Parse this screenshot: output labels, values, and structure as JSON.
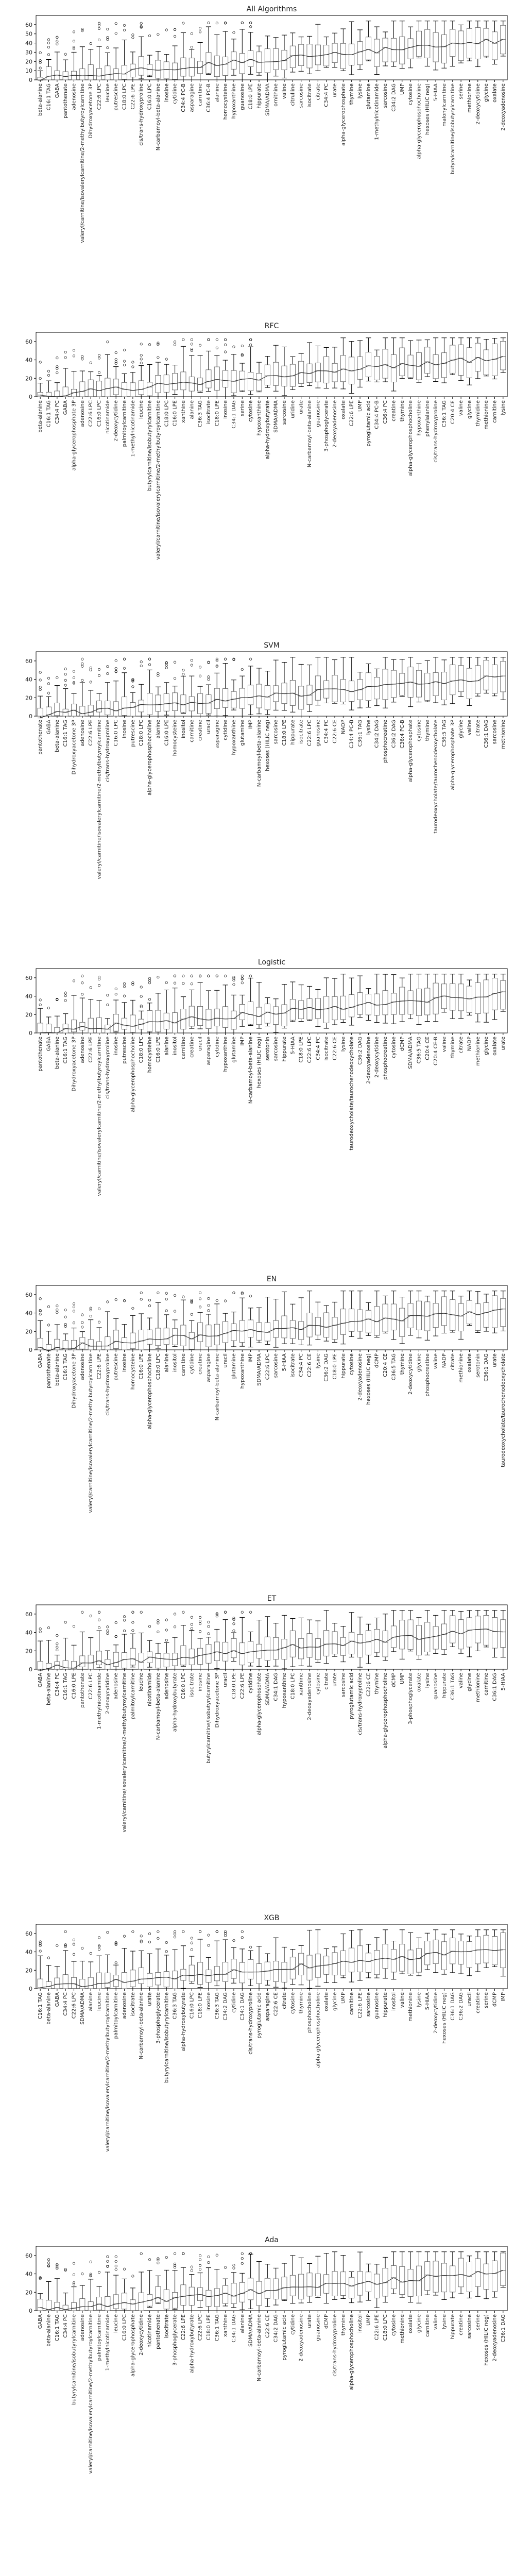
{
  "chart_data": [
    {
      "type": "boxplot",
      "title": "All Algorithms",
      "xlabel": "",
      "ylabel": "",
      "ylim": [
        0,
        70
      ],
      "yticks": [
        0,
        10,
        20,
        30,
        40,
        50,
        60
      ],
      "grid": false,
      "categories": [
        "beta-alanine",
        "C16:1 TAG",
        "GABA",
        "pantothenate",
        "adenosine",
        "valeryl/carnitine/isovalerylcarnitine/2-methylbutyroylcarnitine",
        "Dihydroxyacetone 3P",
        "C22:6 LPC",
        "leucine",
        "putrescine",
        "C18:0 LPC",
        "C22:6 LPE",
        "cis/trans-hydroxyproline",
        "C16:0 LPC",
        "N-carbamoyl-beta-alanine",
        "inosine",
        "cytidine",
        "C34:4 PC-B",
        "asparagine",
        "carnitine",
        "C36:4 PC-B",
        "alanine",
        "homocysteine",
        "hypoxanthine",
        "guanosine",
        "C18:0 LPE",
        "hippurate",
        "SDMA/ADMA",
        "ornithine",
        "valine",
        "citrulline",
        "sarcosine",
        "isocitrate",
        "citrate",
        "C34:4 PC",
        "urate",
        "alpha-glycerophosphate",
        "thymine",
        "lysine",
        "glutamine",
        "1-methylnicotinamide",
        "sarcosine",
        "C34:2 DAG",
        "UMP",
        "cytosine",
        "alpha-glycerophosphocholine",
        "hexoses (HILIC neg)",
        "5-HIAA",
        "malonylcarnitine",
        "butyrylcarnitine/isobutyrylcarnitine",
        "serine",
        "methionine",
        "2-deoxycytidine",
        "glycine",
        "oxalate",
        "2-deoxyadenosine"
      ]
    },
    {
      "type": "boxplot",
      "title": "RFC",
      "xlabel": "",
      "ylabel": "",
      "ylim": [
        0,
        70
      ],
      "yticks": [
        0,
        20,
        40,
        60
      ],
      "grid": false,
      "categories": [
        "beta-alanine",
        "C16:1 TAG",
        "C34:4 PC",
        "GABA",
        "alpha-glycerophosphate 3P",
        "adenosine",
        "C22:6 LPC",
        "C16:0 LPC",
        "nicotinamide",
        "2-deoxycytidine",
        "palmitoylcarnitine",
        "1-methylnicotinamide",
        "leucine",
        "butyrylcarnitine/isobutyrylcarnitine",
        "valeryl/carnitine/isovalerylcarnitine/2-methylbutyroylcarnitine",
        "C18:0 LPC",
        "C16:0 LPE",
        "xanthine",
        "alanine",
        "C36:3 TAG",
        "isocitrate",
        "C18:0 LPE",
        "inosine",
        "C34:1 DAG",
        "serine",
        "cytosine",
        "hypoxanthine",
        "alpha-hydroxybutyrate",
        "SDMA/ADMA",
        "sarcosine",
        "uridine",
        "urate",
        "N-carbamoyl-beta-alanine",
        "guanosine",
        "3-phosphoglycerate",
        "2-deoxyadenosine",
        "oxalate",
        "C22:6 LPE",
        "UMP",
        "pyroglutamic acid",
        "C34:4 PC-B",
        "C36:4 PC",
        "creatine",
        "thymine",
        "alpha-glycerophosphocholine",
        "hypoxanthine",
        "phenylalanine",
        "cis/trans-hydroxyproline",
        "C36:1 TAG",
        "C20:4 CE",
        "valine",
        "glycine",
        "thymidine",
        "methionine",
        "carnitine",
        "lysine"
      ]
    },
    {
      "type": "boxplot",
      "title": "SVM",
      "xlabel": "",
      "ylabel": "",
      "ylim": [
        0,
        70
      ],
      "yticks": [
        0,
        20,
        40,
        60
      ],
      "grid": false,
      "categories": [
        "pantothenate",
        "GABA",
        "beta-alanine",
        "C16:1 TAG",
        "Dihydroxyacetone 3P",
        "adenosine",
        "C22:6 LPE",
        "valeryl/carnitine/isovalerylcarnitine/2-methylbutyroylcarnitine",
        "cis/trans-hydroxyproline",
        "C16:0 LPC",
        "inosine",
        "putrescine",
        "C18:0 LPC",
        "alpha-glycerophosphocholine",
        "alanine",
        "C16:0 LPE",
        "homocysteine",
        "inositol",
        "carnitine",
        "creatine",
        "uracil",
        "asparagine",
        "cytidine",
        "hypoxanthine",
        "glutamine",
        "IMP",
        "N-carbamoyl-beta-alanine",
        "hexoses (HILIC neg)",
        "sarcosine",
        "C18:0 LPE",
        "hippurate",
        "isocitrate",
        "C22:6 LPC",
        "guanosine",
        "C34:4 PC",
        "C22:6 CE",
        "NADP",
        "C34:4 PC-B",
        "C36:1 TAG",
        "lysine",
        "C34:2 DAG",
        "phosphocreatine",
        "C36:2 DAG",
        "C36:4 PC-B",
        "alpha-glycerophosphate",
        "cytosine",
        "thymine",
        "taurodeoxycholate/taurochenodeoxycholate",
        "C36:5 TAG",
        "alpha-glycerophosphate 3P",
        "glycine",
        "valine",
        "citrate",
        "C36:1 DAG",
        "sarcosine",
        "methionine"
      ]
    },
    {
      "type": "boxplot",
      "title": "Logistic",
      "xlabel": "",
      "ylabel": "",
      "ylim": [
        0,
        70
      ],
      "yticks": [
        0,
        20,
        40,
        60
      ],
      "grid": false,
      "categories": [
        "pantothenate",
        "GABA",
        "beta-alanine",
        "C16:1 TAG",
        "Dihydroxyacetone 3P",
        "adenosine",
        "C22:6 LPE",
        "valeryl/carnitine/isovalerylcarnitine/2-methylbutyroylcarnitine",
        "cis/trans-hydroxyproline",
        "inosine",
        "putrescine",
        "alpha-glycerophosphocholine",
        "C18:0 LPC",
        "homocysteine",
        "C16:0 LPE",
        "alanine",
        "inositol",
        "carnitine",
        "creatine",
        "uracil",
        "asparagine",
        "cytidine",
        "hypoxanthine",
        "glutamine",
        "IMP",
        "N-carbamoyl-beta-alanine",
        "hexoses (HILIC neg)",
        "serotonin",
        "sarcosine",
        "hippurate",
        "5-HIAA",
        "C18:0 LPE",
        "C22:6 LPC",
        "C34:4 PC",
        "isocitrate",
        "C22:6 CE",
        "lysine",
        "taurodeoxycholate/taurochenodeoxycholate",
        "C36:2 DAG",
        "2-deoxyadenosine",
        "2-deoxycytidine",
        "phosphocreatine",
        "cytosine",
        "dCMP",
        "SDMA/ADMA",
        "C36:5 TAG",
        "C20:4 CE",
        "C20:4 CE-B",
        "valine",
        "thymine",
        "citrate",
        "NADP",
        "methionine",
        "glycine",
        "oxalate",
        "urate"
      ]
    },
    {
      "type": "boxplot",
      "title": "EN",
      "xlabel": "",
      "ylabel": "",
      "ylim": [
        0,
        70
      ],
      "yticks": [
        0,
        20,
        40,
        60
      ],
      "grid": false,
      "categories": [
        "GABA",
        "pantothenate",
        "beta-alanine",
        "C16:1 TAG",
        "Dihydroxyacetone 3P",
        "adenosine",
        "valeryl/carnitine/isovalerylcarnitine/2-methylbutyroylcarnitine",
        "C22:6 LPE",
        "cis/trans-hydroxyproline",
        "putrescine",
        "inosine",
        "homocysteine",
        "C16:0 LPE",
        "alpha-glycerophosphocholine",
        "C18:0 LPC",
        "alanine",
        "inositol",
        "carnitine",
        "cytidine",
        "creatine",
        "asparagine",
        "N-carbamoyl-beta-alanine",
        "uracil",
        "glutamine",
        "hypoxanthine",
        "IMP",
        "SDMA/ADMA",
        "C22:6 LPC",
        "sarcosine",
        "5-HIAA",
        "isocitrate",
        "C34:4 PC",
        "C22:6 CE",
        "lysine",
        "C36:2 DAG",
        "C18:0 LPE",
        "hippurate",
        "cytosine",
        "2-deoxyadenosine",
        "hexoses (HILIC neg)",
        "dCMP",
        "C20:4 CE",
        "C36:5 TAG",
        "thymine",
        "2-deoxycytidine",
        "glycine",
        "phosphocreatine",
        "valine",
        "NADP",
        "citrate",
        "methionine",
        "oxalate",
        "serotonin",
        "C36:1 DAG",
        "urate",
        "taurodeoxycholate/taurochenodeoxycholate"
      ]
    },
    {
      "type": "boxplot",
      "title": "ET",
      "xlabel": "",
      "ylabel": "",
      "ylim": [
        0,
        70
      ],
      "yticks": [
        0,
        20,
        40,
        60
      ],
      "grid": false,
      "categories": [
        "GABA",
        "beta-alanine",
        "C34:4 PC",
        "C16:1 TAG",
        "C16:0 LPE",
        "pantothenate",
        "C22:6 LPC",
        "1-methylnicotinamide",
        "2-deoxycytidine",
        "adenosine",
        "valeryl/carnitine/isovalerylcarnitine/2-methylbutyroylcarnitine",
        "palmitoylcarnitine",
        "leucine",
        "nicotinamide",
        "N-carbamoyl-beta-alanine",
        "adenosine",
        "alpha-hydroxybutyrate",
        "C16:0 LPC",
        "isocitrate",
        "inosine",
        "butyrylcarnitine/isobutyrylcarnitine",
        "Dihydroxyacetone 3P",
        "uracil",
        "C18:0 LPE",
        "C22:6 LPE",
        "cytidine",
        "alpha-glycerophosphate",
        "SDMA/ADMA",
        "C34:1 DAG",
        "hypoxanthine",
        "C18:0 LPC",
        "xanthine",
        "2-deoxyadenosine",
        "cytosine",
        "citrate",
        "urate",
        "sarcosine",
        "pyroglutamic acid",
        "cis/trans-hydroxyproline",
        "C22:6 CE",
        "thymine",
        "alpha-glycerophosphocholine",
        "dCMP",
        "UMP",
        "3-phosphoglycerate",
        "oxalate",
        "lysine",
        "guanosine",
        "hippurate",
        "C36:1 TAG",
        "valine",
        "glycine",
        "methionine",
        "carnitine",
        "C36:1 DAG",
        "5-HIAA"
      ]
    },
    {
      "type": "boxplot",
      "title": "XGB",
      "xlabel": "",
      "ylabel": "",
      "ylim": [
        0,
        70
      ],
      "yticks": [
        0,
        20,
        40,
        60
      ],
      "grid": false,
      "categories": [
        "C16:1 TAG",
        "beta-alanine",
        "GABA",
        "C34:4 PC",
        "C22:6 LPC",
        "SDMA/ADMA",
        "alanine",
        "leucine",
        "valeryl/carnitine/isovalerylcarnitine/2-methylbutyroylcarnitine",
        "palmitoylcarnitine",
        "adenosine",
        "isocitrate",
        "N-carbamoyl-beta-alanine",
        "urate",
        "3-phosphoglycerate",
        "butyrylcarnitine/isobutyrylcarnitine",
        "C36:3 TAG",
        "alpha-hydroxybutyrate",
        "C16:0 LPC",
        "C18:0 LPE",
        "inosine",
        "C36:3 TAG",
        "C34:2 DAG",
        "cytidine",
        "C34:1 DAG",
        "cis/trans-hydroxyproline",
        "pyroglutamic acid",
        "asparagine",
        "C22:6 CE",
        "citrate",
        "cytosine",
        "thymine",
        "phosphocholine",
        "alpha-glycerophosphocholine",
        "oxalate",
        "glycine",
        "UMP",
        "carnitine",
        "C22:6 LPE",
        "sarcosine",
        "guanosine",
        "hippurate",
        "inositol",
        "valine",
        "methionine",
        "lysine",
        "5-HIAA",
        "2-deoxycytidine",
        "hexoses (HILIC neg)",
        "C36:1 DAG",
        "C36:2 DAG",
        "uracil",
        "creatine",
        "serine",
        "dCMP",
        "IMP"
      ]
    },
    {
      "type": "boxplot",
      "title": "Ada",
      "xlabel": "",
      "ylabel": "",
      "ylim": [
        0,
        70
      ],
      "yticks": [
        0,
        20,
        40,
        60
      ],
      "grid": false,
      "categories": [
        "GABA",
        "beta-alanine",
        "C16:1 TAG",
        "C34:4 PC",
        "butyrylcarnitine/isobutyrylcarnitine",
        "adenosine",
        "valeryl/carnitine/isovalerylcarnitine/2-methylbutyroylcarnitine",
        "palmitoylcarnitine",
        "1-methylnicotinamide",
        "leucine",
        "C16:0 LPC",
        "alpha-glycerophosphate",
        "2-deoxycytidine",
        "nicotinamide",
        "pantothenate",
        "isocitrate",
        "3-phosphoglycerate",
        "C22:6 LPE",
        "alpha-hydroxybutyrate",
        "C22:6 LPC",
        "C18:0 LPE",
        "C36:1 TAG",
        "xanthine",
        "C34:1 DAG",
        "alanine",
        "SDMA/ADMA",
        "N-carbamoyl-beta-alanine",
        "C22:6 CE",
        "C34:2 DAG",
        "pyroglutamic acid",
        "cytidine",
        "2-deoxyadenosine",
        "urate",
        "guanosine",
        "dCMP",
        "cis/trans-hydroxyproline",
        "thymine",
        "alpha-glycerophosphocholine",
        "inositol",
        "UMP",
        "C22:6 LPE",
        "C18:0 LPC",
        "cytosine",
        "methionine",
        "oxalate",
        "glycine",
        "carnitine",
        "valine",
        "lysine",
        "hippurate",
        "creatine",
        "sarcosine",
        "serine",
        "hexoses (HILIC neg)",
        "2-deoxyadenosine",
        "C36:1 DAG"
      ]
    }
  ]
}
